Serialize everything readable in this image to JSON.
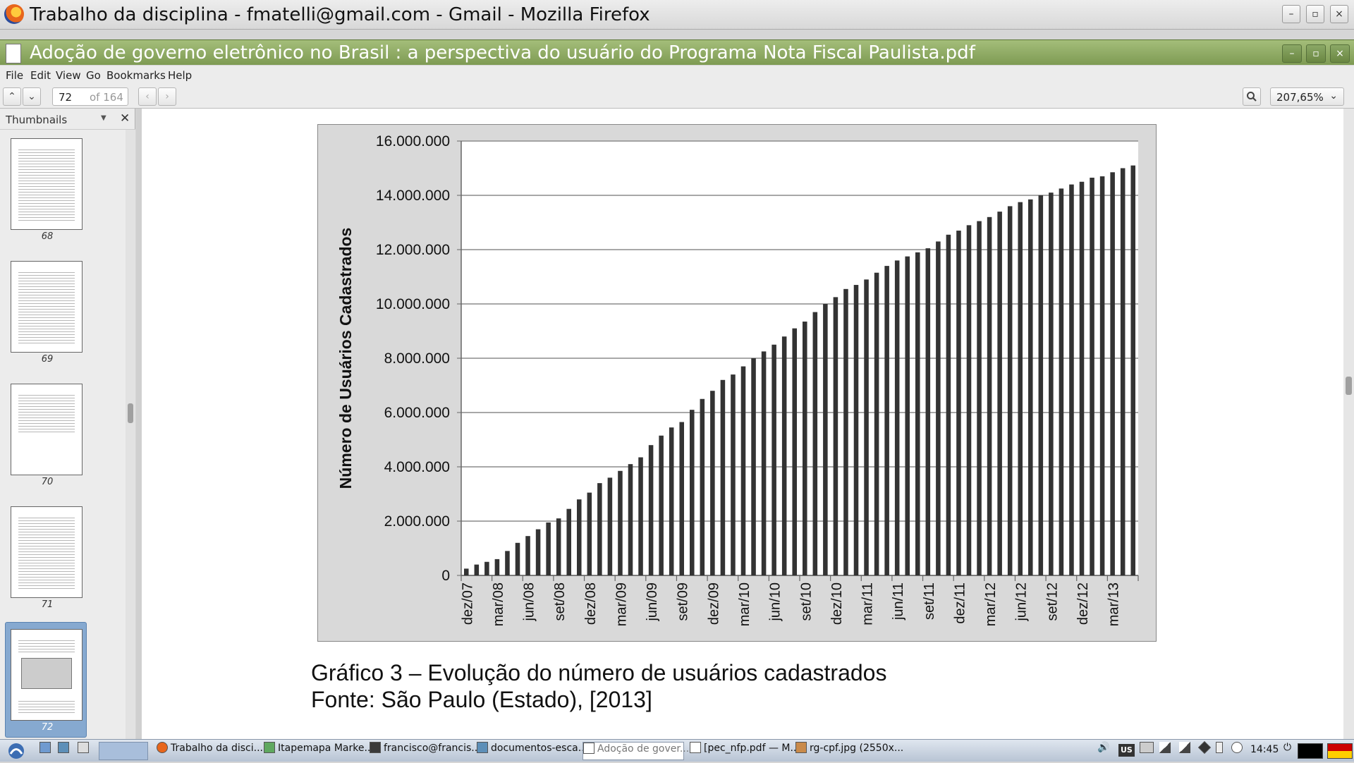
{
  "firefox": {
    "title": "Trabalho da disciplina - fmatelli@gmail.com - Gmail - Mozilla Firefox",
    "controls": [
      "–",
      "▫",
      "×"
    ]
  },
  "evince": {
    "title": "Adoção de governo eletrônico no Brasil : a perspectiva do usuário do Programa Nota Fiscal Paulista.pdf",
    "controls": [
      "–",
      "▫",
      "×"
    ],
    "menu": [
      "File",
      "Edit",
      "View",
      "Go",
      "Bookmarks",
      "Help"
    ],
    "page_current": "72",
    "page_total": "of 164",
    "zoom": "207,65%"
  },
  "sidebar": {
    "label": "Thumbnails",
    "pages": [
      "68",
      "69",
      "70",
      "71",
      "72"
    ],
    "selected": "72"
  },
  "chart_data": {
    "type": "bar",
    "ylabel": "Número de Usuários Cadastrados",
    "ylim": [
      0,
      16000000
    ],
    "yticks": [
      "0",
      "2.000.000",
      "4.000.000",
      "6.000.000",
      "8.000.000",
      "10.000.000",
      "12.000.000",
      "14.000.000",
      "16.000.000"
    ],
    "xtick_labels": [
      "dez/07",
      "mar/08",
      "jun/08",
      "set/08",
      "dez/08",
      "mar/09",
      "jun/09",
      "set/09",
      "dez/09",
      "mar/10",
      "jun/10",
      "set/10",
      "dez/10",
      "mar/11",
      "jun/11",
      "set/11",
      "dez/11",
      "mar/12",
      "jun/12",
      "set/12",
      "dez/12",
      "mar/13"
    ],
    "values": [
      250000,
      400000,
      500000,
      600000,
      900000,
      1200000,
      1450000,
      1700000,
      1950000,
      2100000,
      2450000,
      2800000,
      3050000,
      3400000,
      3600000,
      3850000,
      4100000,
      4350000,
      4800000,
      5150000,
      5450000,
      5650000,
      6100000,
      6500000,
      6800000,
      7200000,
      7400000,
      7700000,
      8000000,
      8250000,
      8500000,
      8800000,
      9100000,
      9350000,
      9700000,
      10000000,
      10250000,
      10550000,
      10700000,
      10900000,
      11150000,
      11400000,
      11600000,
      11750000,
      11900000,
      12050000,
      12300000,
      12550000,
      12700000,
      12900000,
      13050000,
      13200000,
      13400000,
      13600000,
      13750000,
      13850000,
      14000000,
      14100000,
      14250000,
      14400000,
      14500000,
      14650000,
      14700000,
      14850000,
      15000000,
      15100000
    ],
    "bar_color": "#333333"
  },
  "caption": {
    "line1": "Gráfico 3 – Evolução do número de usuários cadastrados",
    "line2": "Fonte: São Paulo (Estado), [2013]"
  },
  "taskbar": {
    "tasks": [
      "Trabalho da disci...",
      "Itapemapa Marke...",
      "francisco@francis...",
      "documentos-esca...",
      "Adoção de gover...",
      "[pec_nfp.pdf — M...",
      "rg-cpf.jpg (2550x..."
    ],
    "active_task": "Adoção de gover...",
    "keyboard_layout": "US",
    "clock": "14:45"
  }
}
